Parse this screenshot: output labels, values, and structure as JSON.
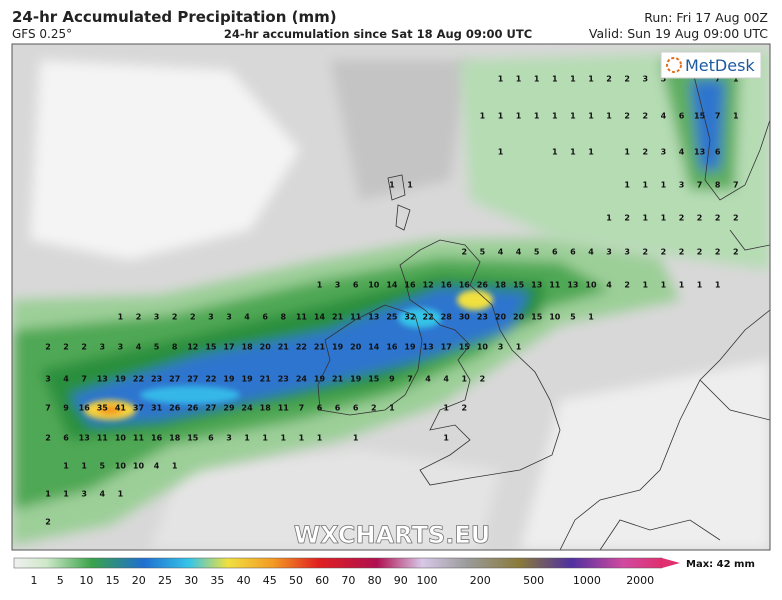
{
  "header": {
    "title": "24-hr Accumulated Precipitation (mm)",
    "model": "GFS 0.25°",
    "subtitle": "24-hr accumulation since Sat 18 Aug 09:00 UTC",
    "run": "Run: Fri 17 Aug 00Z",
    "valid": "Valid: Sun 19 Aug 09:00 UTC"
  },
  "logo": "MetDesk",
  "watermark": "WXCHARTS.EU",
  "grid_values": [
    [
      null,
      null,
      null,
      null,
      null,
      null,
      null,
      null,
      null,
      null,
      null,
      null,
      null,
      null,
      null,
      null,
      null,
      null,
      null,
      null,
      null,
      null,
      null,
      null,
      null,
      1,
      1,
      1,
      1,
      1,
      1,
      2,
      2,
      3,
      5,
      null,
      null,
      7,
      1
    ],
    [
      null,
      null,
      null,
      null,
      null,
      null,
      null,
      null,
      null,
      null,
      null,
      null,
      null,
      null,
      null,
      null,
      null,
      null,
      null,
      null,
      null,
      null,
      null,
      null,
      1,
      1,
      1,
      1,
      1,
      1,
      1,
      1,
      2,
      2,
      4,
      6,
      15,
      7,
      1
    ],
    [
      null,
      null,
      null,
      null,
      null,
      null,
      null,
      null,
      null,
      null,
      null,
      null,
      null,
      null,
      null,
      null,
      null,
      null,
      null,
      null,
      null,
      null,
      null,
      null,
      null,
      1,
      null,
      null,
      1,
      1,
      1,
      null,
      1,
      2,
      3,
      4,
      13,
      6,
      null
    ],
    [
      null,
      null,
      null,
      null,
      null,
      null,
      null,
      null,
      null,
      null,
      null,
      null,
      null,
      null,
      null,
      null,
      null,
      null,
      null,
      1,
      1,
      null,
      null,
      null,
      null,
      null,
      null,
      null,
      null,
      null,
      null,
      null,
      1,
      1,
      1,
      3,
      7,
      8,
      7
    ],
    [
      null,
      null,
      null,
      null,
      null,
      null,
      null,
      null,
      null,
      null,
      null,
      null,
      null,
      null,
      null,
      null,
      null,
      null,
      null,
      null,
      null,
      null,
      null,
      null,
      null,
      null,
      null,
      null,
      null,
      null,
      null,
      1,
      2,
      1,
      1,
      2,
      2,
      2,
      2
    ],
    [
      null,
      null,
      null,
      null,
      null,
      null,
      null,
      null,
      null,
      null,
      null,
      null,
      null,
      null,
      null,
      null,
      null,
      null,
      null,
      null,
      null,
      null,
      null,
      2,
      5,
      4,
      4,
      5,
      6,
      6,
      4,
      3,
      3,
      2,
      2,
      2,
      2,
      2,
      2
    ],
    [
      null,
      null,
      null,
      null,
      null,
      null,
      null,
      null,
      null,
      null,
      null,
      null,
      null,
      null,
      null,
      1,
      3,
      6,
      10,
      14,
      16,
      12,
      16,
      16,
      26,
      18,
      15,
      13,
      11,
      13,
      10,
      4,
      2,
      1,
      1,
      1,
      1,
      1,
      null
    ],
    [
      null,
      null,
      null,
      null,
      1,
      2,
      3,
      2,
      2,
      3,
      3,
      4,
      6,
      8,
      11,
      14,
      21,
      11,
      13,
      25,
      32,
      22,
      28,
      30,
      23,
      20,
      20,
      15,
      10,
      5,
      1,
      null,
      null,
      null,
      null,
      null,
      null,
      null,
      null
    ],
    [
      2,
      2,
      2,
      3,
      3,
      4,
      5,
      8,
      12,
      15,
      17,
      18,
      20,
      21,
      22,
      21,
      19,
      20,
      14,
      16,
      19,
      13,
      17,
      15,
      10,
      3,
      1,
      null,
      null,
      null,
      null,
      null,
      null,
      null,
      null,
      null,
      null,
      null,
      null
    ],
    [
      3,
      4,
      7,
      13,
      19,
      22,
      23,
      27,
      27,
      22,
      19,
      19,
      21,
      23,
      24,
      19,
      21,
      19,
      15,
      9,
      7,
      4,
      4,
      1,
      2,
      null,
      null,
      null,
      null,
      null,
      null,
      null,
      null,
      null,
      null,
      null,
      null,
      null,
      null
    ],
    [
      7,
      9,
      16,
      35,
      41,
      37,
      31,
      26,
      26,
      27,
      29,
      24,
      18,
      11,
      7,
      6,
      6,
      6,
      2,
      1,
      null,
      null,
      1,
      2,
      null,
      null,
      null,
      null,
      null,
      null,
      null,
      null,
      null,
      null,
      null,
      null,
      null,
      null,
      null
    ],
    [
      2,
      6,
      13,
      11,
      10,
      11,
      16,
      18,
      15,
      6,
      3,
      1,
      1,
      1,
      1,
      1,
      null,
      1,
      null,
      null,
      null,
      null,
      1,
      null,
      null,
      null,
      null,
      null,
      null,
      null,
      null,
      null,
      null,
      null,
      null,
      null,
      null,
      null,
      null
    ],
    [
      null,
      1,
      1,
      5,
      10,
      10,
      4,
      1,
      null,
      null,
      null,
      null,
      null,
      null,
      null,
      null,
      null,
      null,
      null,
      null,
      null,
      null,
      null,
      null,
      null,
      null,
      null,
      null,
      null,
      null,
      null,
      null,
      null,
      null,
      null,
      null,
      null,
      null,
      null
    ],
    [
      1,
      1,
      3,
      4,
      1,
      null,
      null,
      null,
      null,
      null,
      null,
      null,
      null,
      null,
      null,
      null,
      null,
      null,
      null,
      null,
      null,
      null,
      null,
      null,
      null,
      null,
      null,
      null,
      null,
      null,
      null,
      null,
      null,
      null,
      null,
      null,
      null,
      null,
      null
    ],
    [
      2,
      null,
      null,
      null,
      null,
      null,
      null,
      null,
      null,
      null,
      null,
      null,
      null,
      null,
      null,
      null,
      null,
      null,
      null,
      null,
      null,
      null,
      null,
      null,
      null,
      null,
      null,
      null,
      null,
      null,
      null,
      null,
      null,
      null,
      null,
      null,
      null,
      null,
      null
    ]
  ],
  "colorbar": {
    "labels": [
      1,
      5,
      10,
      15,
      20,
      25,
      30,
      35,
      40,
      45,
      50,
      60,
      70,
      80,
      90,
      100,
      200,
      500,
      1000,
      2000
    ],
    "max_label": "Max: 42 mm"
  }
}
